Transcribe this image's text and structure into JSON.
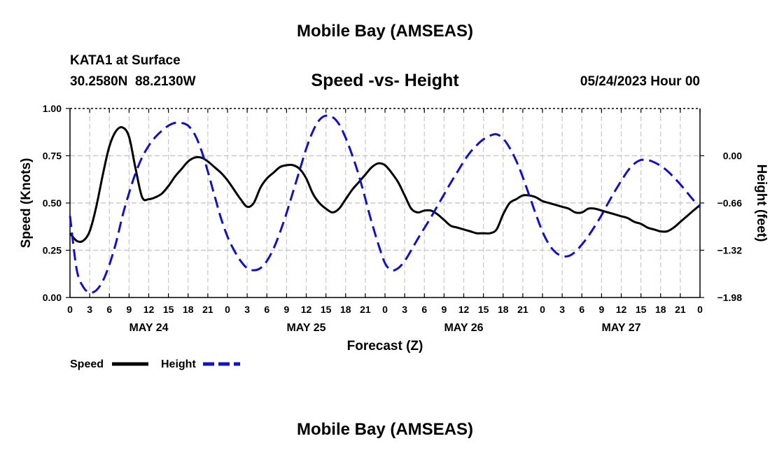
{
  "header": {
    "title": "Mobile Bay (AMSEAS)",
    "station": "KATA1 at Surface",
    "coords": "30.2580N  88.2130W",
    "chart_title": "Speed -vs- Height",
    "datetime": "05/24/2023 Hour 00"
  },
  "footer": {
    "title": "Mobile Bay (AMSEAS)"
  },
  "legend": {
    "speed_label": "Speed",
    "height_label": "Height"
  },
  "colors": {
    "speed": "#000000",
    "height": "#1010c8",
    "grid": "#c8c8c8"
  },
  "chart_data": {
    "type": "line",
    "title": "Speed -vs- Height",
    "xlabel": "Forecast (Z)",
    "ylabel": "Speed (Knots)",
    "y2label": "Height (feet)",
    "x_tick_labels": [
      "0",
      "3",
      "6",
      "9",
      "12",
      "15",
      "18",
      "21",
      "0",
      "3",
      "6",
      "9",
      "12",
      "15",
      "18",
      "21",
      "0",
      "3",
      "6",
      "9",
      "12",
      "15",
      "18",
      "21",
      "0",
      "3",
      "6",
      "9",
      "12",
      "15",
      "18",
      "21",
      "0"
    ],
    "day_labels": [
      {
        "label": "MAY 24",
        "hour": 12
      },
      {
        "label": "MAY 25",
        "hour": 36
      },
      {
        "label": "MAY 26",
        "hour": 60
      },
      {
        "label": "MAY 27",
        "hour": 84
      }
    ],
    "xlim": [
      0,
      96
    ],
    "ylim": [
      0,
      1
    ],
    "y_ticks": [
      "0.00",
      "0.25",
      "0.50",
      "0.75",
      "1.00"
    ],
    "y2lim": [
      -1.98,
      0.66
    ],
    "y2_ticks": [
      "−1.98",
      "−1.32",
      "−0.66",
      "0.00"
    ],
    "grid": true,
    "series": [
      {
        "name": "Speed",
        "axis": "left",
        "style": "solid",
        "x": [
          0,
          1,
          2,
          3,
          4,
          5,
          6,
          7,
          8,
          9,
          10,
          11,
          12,
          13,
          14,
          15,
          16,
          17,
          18,
          19,
          20,
          21,
          22,
          23,
          24,
          25,
          26,
          27,
          28,
          29,
          30,
          31,
          32,
          33,
          34,
          35,
          36,
          37,
          38,
          39,
          40,
          41,
          42,
          43,
          44,
          45,
          46,
          47,
          48,
          49,
          50,
          51,
          52,
          53,
          54,
          55,
          56,
          57,
          58,
          59,
          60,
          61,
          62,
          63,
          64,
          65,
          66,
          67,
          68,
          69,
          70,
          71,
          72,
          73,
          74,
          75,
          76,
          77,
          78,
          79,
          80,
          81,
          82,
          83,
          84,
          85,
          86,
          87,
          88,
          89,
          90,
          91,
          92,
          93,
          94,
          95,
          96
        ],
        "values": [
          0.34,
          0.3,
          0.3,
          0.35,
          0.48,
          0.65,
          0.8,
          0.88,
          0.9,
          0.85,
          0.68,
          0.53,
          0.52,
          0.53,
          0.55,
          0.59,
          0.64,
          0.68,
          0.72,
          0.74,
          0.74,
          0.72,
          0.69,
          0.66,
          0.62,
          0.57,
          0.52,
          0.48,
          0.5,
          0.58,
          0.63,
          0.66,
          0.69,
          0.7,
          0.7,
          0.68,
          0.63,
          0.55,
          0.5,
          0.47,
          0.45,
          0.47,
          0.52,
          0.57,
          0.61,
          0.65,
          0.69,
          0.71,
          0.7,
          0.66,
          0.61,
          0.54,
          0.47,
          0.45,
          0.46,
          0.46,
          0.44,
          0.41,
          0.38,
          0.37,
          0.36,
          0.35,
          0.34,
          0.34,
          0.34,
          0.36,
          0.44,
          0.5,
          0.52,
          0.54,
          0.54,
          0.53,
          0.51,
          0.5,
          0.49,
          0.48,
          0.47,
          0.45,
          0.45,
          0.47,
          0.47,
          0.46,
          0.45,
          0.44,
          0.43,
          0.42,
          0.4,
          0.39,
          0.37,
          0.36,
          0.35,
          0.35,
          0.37,
          0.4,
          0.43,
          0.46,
          0.49
        ]
      },
      {
        "name": "Height",
        "axis": "right",
        "style": "dashed",
        "x": [
          0,
          1,
          2,
          3,
          4,
          5,
          6,
          7,
          8,
          9,
          10,
          11,
          12,
          13,
          14,
          15,
          16,
          17,
          18,
          19,
          20,
          21,
          22,
          23,
          24,
          25,
          26,
          27,
          28,
          29,
          30,
          31,
          32,
          33,
          34,
          35,
          36,
          37,
          38,
          39,
          40,
          41,
          42,
          43,
          44,
          45,
          46,
          47,
          48,
          49,
          50,
          51,
          52,
          53,
          54,
          55,
          56,
          57,
          58,
          59,
          60,
          61,
          62,
          63,
          64,
          65,
          66,
          67,
          68,
          69,
          70,
          71,
          72,
          73,
          74,
          75,
          76,
          77,
          78,
          79,
          80,
          81,
          82,
          83,
          84,
          85,
          86,
          87,
          88,
          89,
          90,
          91,
          92,
          93,
          94,
          95,
          96
        ],
        "values": [
          -0.84,
          -1.58,
          -1.83,
          -1.91,
          -1.88,
          -1.75,
          -1.52,
          -1.22,
          -0.84,
          -0.52,
          -0.24,
          -0.02,
          0.14,
          0.26,
          0.35,
          0.42,
          0.46,
          0.46,
          0.42,
          0.3,
          0.08,
          -0.22,
          -0.55,
          -0.87,
          -1.13,
          -1.32,
          -1.47,
          -1.57,
          -1.6,
          -1.57,
          -1.47,
          -1.3,
          -1.07,
          -0.8,
          -0.5,
          -0.2,
          0.1,
          0.34,
          0.5,
          0.56,
          0.54,
          0.44,
          0.25,
          0.01,
          -0.27,
          -0.6,
          -0.94,
          -1.24,
          -1.5,
          -1.6,
          -1.57,
          -1.47,
          -1.32,
          -1.16,
          -1.01,
          -0.86,
          -0.7,
          -0.54,
          -0.38,
          -0.23,
          -0.08,
          0.05,
          0.15,
          0.23,
          0.28,
          0.3,
          0.24,
          0.11,
          -0.07,
          -0.3,
          -0.56,
          -0.82,
          -1.06,
          -1.24,
          -1.35,
          -1.4,
          -1.4,
          -1.34,
          -1.24,
          -1.12,
          -0.98,
          -0.83,
          -0.66,
          -0.5,
          -0.35,
          -0.21,
          -0.11,
          -0.06,
          -0.06,
          -0.09,
          -0.14,
          -0.21,
          -0.3,
          -0.4,
          -0.51,
          -0.62,
          -0.72
        ]
      }
    ]
  }
}
